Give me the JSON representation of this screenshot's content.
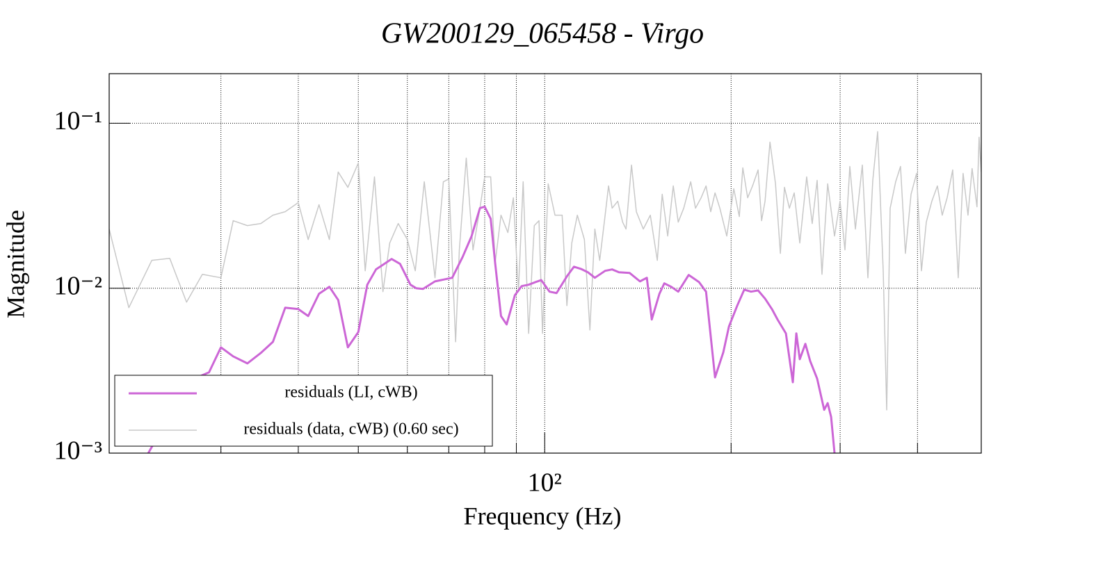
{
  "chart_data": {
    "type": "line",
    "title": "GW200129_065458 - Virgo",
    "x_label": "Frequency (Hz)",
    "y_label": "Magnitude",
    "xscale": "log",
    "yscale": "log",
    "xlim": [
      19.8,
      507
    ],
    "ylim": [
      0.001,
      0.2
    ],
    "xticks": [
      {
        "value": 100,
        "label": "10²"
      }
    ],
    "xgrid": [
      30,
      40,
      50,
      60,
      70,
      80,
      90,
      200,
      300,
      400
    ],
    "yticks": [
      {
        "value": 0.001,
        "label": "10⁻³"
      },
      {
        "value": 0.01,
        "label": "10⁻²"
      },
      {
        "value": 0.1,
        "label": "10⁻¹"
      }
    ],
    "grid": true,
    "legend": "bottom-left",
    "series": [
      {
        "name": "residuals (LI, cWB)",
        "color": "#cc66d6",
        "width": 3,
        "x": [
          22.9,
          25.9,
          27.3,
          28.0,
          28.7,
          30.0,
          31.4,
          33.1,
          34.8,
          36.4,
          38.1,
          40.0,
          41.5,
          43.2,
          44.9,
          46.4,
          48.1,
          50.0,
          51.7,
          53.4,
          56.6,
          58.4,
          60.7,
          62.0,
          63.6,
          66.5,
          70.9,
          73.7,
          76.2,
          78.6,
          80.0,
          81.8,
          83.2,
          85.0,
          86.8,
          89.5,
          91.8,
          94.2,
          96.7,
          98.7,
          101.8,
          104.5,
          108.6,
          111.5,
          114.4,
          117.4,
          120.5,
          125.2,
          128.5,
          131.8,
          137.1,
          142.5,
          146.2,
          148.9,
          153.2,
          156.0,
          160.1,
          164.3,
          170.8,
          177.5,
          182.2,
          188.4,
          194.3,
          198.4,
          204.6,
          210.0,
          215.4,
          221.1,
          226.9,
          232.8,
          237.7,
          245.2,
          251.6,
          254.9,
          258.2,
          263.6,
          268.4,
          275.4,
          282.7,
          286.4,
          290.1,
          293.8
        ],
        "values": [
          0.001,
          0.00226,
          0.00283,
          0.00297,
          0.00309,
          0.00438,
          0.00386,
          0.0035,
          0.00405,
          0.00473,
          0.00762,
          0.00747,
          0.00678,
          0.00925,
          0.0102,
          0.00848,
          0.00438,
          0.00542,
          0.0105,
          0.013,
          0.01504,
          0.01405,
          0.0105,
          0.01,
          0.0099,
          0.011,
          0.01157,
          0.01548,
          0.0207,
          0.0306,
          0.0312,
          0.0264,
          0.01405,
          0.00678,
          0.00603,
          0.00907,
          0.0103,
          0.0105,
          0.0109,
          0.0112,
          0.00953,
          0.00934,
          0.0118,
          0.0135,
          0.0131,
          0.0125,
          0.01157,
          0.01275,
          0.013,
          0.0125,
          0.01238,
          0.011,
          0.01157,
          0.00646,
          0.00925,
          0.0107,
          0.0102,
          0.00953,
          0.01203,
          0.0109,
          0.00953,
          0.00288,
          0.00409,
          0.00586,
          0.00784,
          0.0098,
          0.00953,
          0.0097,
          0.00865,
          0.00747,
          0.00646,
          0.00532,
          0.00269,
          0.00532,
          0.00371,
          0.0046,
          0.00361,
          0.00283,
          0.00183,
          0.00201,
          0.001657,
          0.001
        ]
      },
      {
        "name": "residuals (data, cWB) (0.60 sec)",
        "color": "#c8c8c8",
        "width": 1.5,
        "x": [
          19.8,
          21.3,
          23.2,
          24.8,
          26.4,
          28.0,
          30.0,
          31.4,
          33.1,
          34.8,
          36.4,
          38.1,
          40.0,
          41.5,
          43.2,
          44.9,
          46.4,
          48.1,
          50.0,
          51.3,
          53.1,
          54.8,
          56.2,
          58.0,
          60.0,
          61.8,
          63.9,
          66.5,
          68.6,
          70.0,
          71.8,
          72.8,
          74.7,
          76.6,
          78.6,
          80.0,
          81.8,
          83.2,
          85.0,
          87.2,
          89.0,
          90.7,
          92.3,
          94.2,
          96.2,
          97.9,
          99.2,
          101.3,
          103.9,
          106.7,
          108.6,
          110.6,
          112.9,
          115.9,
          118.3,
          120.5,
          122.7,
          125.2,
          126.8,
          128.5,
          131.2,
          133.6,
          135.3,
          138.1,
          140.6,
          144.3,
          148.1,
          152.0,
          154.8,
          158.0,
          161.3,
          164.3,
          167.7,
          172.1,
          175.2,
          178.9,
          182.2,
          185.4,
          188.4,
          191.8,
          196.8,
          202.0,
          206.2,
          208.9,
          212.7,
          216.6,
          221.1,
          224.0,
          226.9,
          231.1,
          235.9,
          240.2,
          243.9,
          248.4,
          252.9,
          258.2,
          264.9,
          270.4,
          275.4,
          280.4,
          286.4,
          293.8,
          299.9,
          305.4,
          311.0,
          317.5,
          325.8,
          332.6,
          338.7,
          344.9,
          352.1,
          356.7,
          361.3,
          368.8,
          375.5,
          382.4,
          390.5,
          398.6,
          405.9,
          413.3,
          421.9,
          430.7,
          438.5,
          446.6,
          455.9,
          465.4,
          473.9,
          482.6,
          490.0,
          499.0,
          502.9,
          507.0
        ],
        "values": [
          0.02284,
          0.00762,
          0.01475,
          0.01518,
          0.00823,
          0.01214,
          0.01157,
          0.02567,
          0.02397,
          0.02468,
          0.02773,
          0.02911,
          0.03304,
          0.01974,
          0.03209,
          0.01974,
          0.05065,
          0.04091,
          0.05748,
          0.01275,
          0.04732,
          0.00953,
          0.0188,
          0.02468,
          0.01974,
          0.01275,
          0.04422,
          0.01157,
          0.04422,
          0.04597,
          0.00473,
          0.01707,
          0.06152,
          0.01707,
          0.03057,
          0.04732,
          0.04732,
          0.01432,
          0.02773,
          0.02176,
          0.03536,
          0.00953,
          0.04422,
          0.00532,
          0.02397,
          0.02567,
          0.00532,
          0.04295,
          0.02773,
          0.02773,
          0.00784,
          0.0188,
          0.02773,
          0.01974,
          0.00558,
          0.02284,
          0.01475,
          0.02773,
          0.04172,
          0.03057,
          0.03369,
          0.02517,
          0.02284,
          0.05582,
          0.02911,
          0.02284,
          0.02773,
          0.01475,
          0.03712,
          0.02073,
          0.04172,
          0.02517,
          0.03057,
          0.04422,
          0.03057,
          0.03536,
          0.04172,
          0.02911,
          0.03785,
          0.03057,
          0.02073,
          0.04013,
          0.0272,
          0.0537,
          0.03536,
          0.04172,
          0.05214,
          0.02567,
          0.03369,
          0.07694,
          0.04295,
          0.01626,
          0.04091,
          0.03057,
          0.03785,
          0.0188,
          0.04732,
          0.02468,
          0.04508,
          0.01214,
          0.04295,
          0.02073,
          0.03369,
          0.01707,
          0.05476,
          0.02284,
          0.05582,
          0.01157,
          0.04508,
          0.08902,
          0.01275,
          0.001827,
          0.03057,
          0.04422,
          0.05476,
          0.01626,
          0.03712,
          0.04968,
          0.01275,
          0.02517,
          0.03369,
          0.04172,
          0.02773,
          0.03536,
          0.05214,
          0.01157,
          0.04968,
          0.02773,
          0.05317,
          0.03117,
          0.08234,
          0.05065
        ]
      }
    ]
  }
}
